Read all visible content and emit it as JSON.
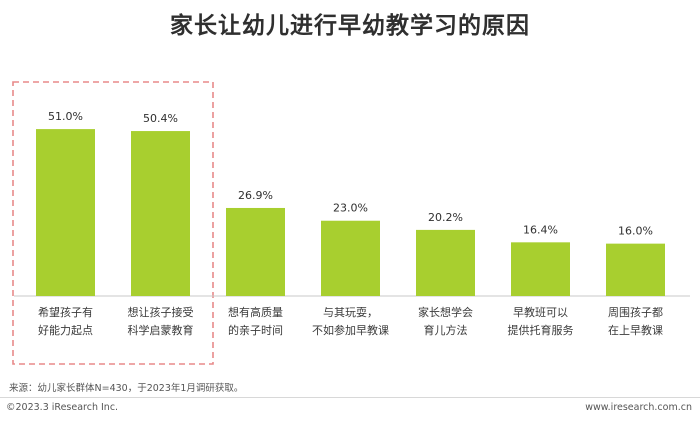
{
  "chart_data": {
    "type": "bar",
    "title": "家长让幼儿进行早幼教学习的原因",
    "categories": [
      [
        "希望孩子有",
        "好能力起点"
      ],
      [
        "想让孩子接受",
        "科学启蒙教育"
      ],
      [
        "想有高质量",
        "的亲子时间"
      ],
      [
        "与其玩耍，",
        "不如参加早教课"
      ],
      [
        "家长想学会",
        "育儿方法"
      ],
      [
        "早教班可以",
        "提供托育服务"
      ],
      [
        "周围孩子都",
        "在上早教课"
      ]
    ],
    "values": [
      51.0,
      50.4,
      26.9,
      23.0,
      20.2,
      16.4,
      16.0
    ],
    "value_labels": [
      "51.0%",
      "50.4%",
      "26.9%",
      "23.0%",
      "20.2%",
      "16.4%",
      "16.0%"
    ],
    "highlighted_categories": [
      0,
      1
    ],
    "ylim": [
      0,
      55
    ],
    "bar_color": "#a8cf2f",
    "highlight_box_color": "#e88a8a",
    "grid": false,
    "xlabel": "",
    "ylabel": ""
  },
  "source_note": "来源：幼儿家长群体N=430，于2023年1月调研获取。",
  "footer": {
    "copyright": "©2023.3 iResearch Inc.",
    "website": "www.iresearch.com.cn"
  }
}
